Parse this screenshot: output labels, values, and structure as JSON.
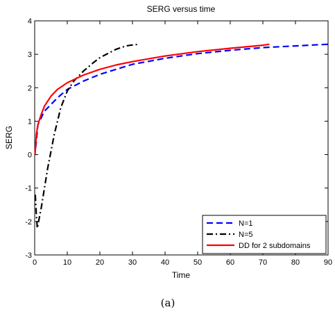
{
  "chart_data": {
    "type": "line",
    "title": "SERG versus time",
    "xlabel": "Time",
    "ylabel": "SERG",
    "xlim": [
      0,
      90
    ],
    "ylim": [
      -3,
      4
    ],
    "xticks": [
      "0",
      "10",
      "20",
      "30",
      "40",
      "50",
      "60",
      "70",
      "80",
      "90"
    ],
    "yticks": [
      "-3",
      "-2",
      "-1",
      "0",
      "1",
      "2",
      "3",
      "4"
    ],
    "grid": false,
    "legend_position": "bottom-right",
    "series": [
      {
        "name": "N=1",
        "color": "#0000ff",
        "style": "dashed",
        "x": [
          0.3,
          1,
          2,
          3,
          5,
          7,
          10,
          12,
          15,
          20,
          25,
          30,
          40,
          50,
          60,
          70,
          80,
          90
        ],
        "y": [
          0.2,
          0.9,
          1.1,
          1.3,
          1.5,
          1.7,
          1.95,
          2.05,
          2.2,
          2.4,
          2.55,
          2.7,
          2.88,
          3.02,
          3.12,
          3.2,
          3.25,
          3.3
        ]
      },
      {
        "name": "N=5",
        "color": "#000000",
        "style": "dashdot",
        "x": [
          0.2,
          0.5,
          0.8,
          1.2,
          2,
          3,
          4,
          5,
          6,
          7,
          8,
          10,
          12,
          15,
          18,
          20,
          22,
          25,
          28,
          30,
          32
        ],
        "y": [
          -1.2,
          -1.8,
          -2.2,
          -2.0,
          -1.6,
          -1.0,
          -0.4,
          0.1,
          0.6,
          1.0,
          1.4,
          1.9,
          2.2,
          2.5,
          2.75,
          2.9,
          3.0,
          3.15,
          3.25,
          3.28,
          3.3
        ]
      },
      {
        "name": "DD for 2 subdomains",
        "color": "#ff0000",
        "style": "solid",
        "x": [
          0.1,
          0.5,
          1,
          2,
          3,
          5,
          7,
          10,
          15,
          20,
          25,
          30,
          40,
          50,
          60,
          70,
          72
        ],
        "y": [
          0.0,
          0.6,
          0.9,
          1.2,
          1.45,
          1.75,
          1.95,
          2.15,
          2.38,
          2.55,
          2.68,
          2.78,
          2.95,
          3.08,
          3.18,
          3.27,
          3.3
        ]
      }
    ]
  },
  "caption": "(a)"
}
